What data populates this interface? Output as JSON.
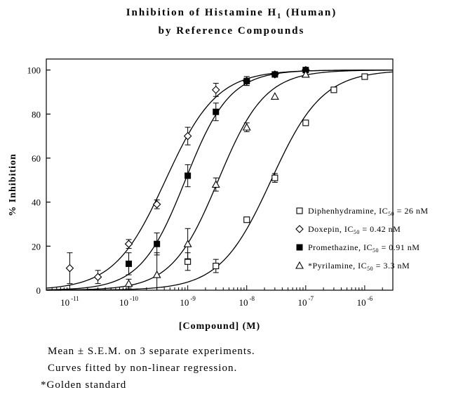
{
  "titles": {
    "line1_pre": "Inhibition of Histamine H",
    "line1_sub": "1",
    "line1_post": " (Human)",
    "line2": "by Reference Compounds"
  },
  "notes": [
    "Mean ± S.E.M. on 3 separate experiments.",
    "Curves fitted by non-linear regression.",
    "*Golden standard"
  ],
  "chart_data": {
    "type": "scatter",
    "xlabel": "[Compound] (M)",
    "ylabel": "% Inhibition",
    "x_scale": "log",
    "xlim": [
      4e-12,
      3e-06
    ],
    "ylim": [
      0,
      105
    ],
    "x_ticks": [
      {
        "value": 1e-11,
        "base": "10",
        "exp": "-11"
      },
      {
        "value": 1e-10,
        "base": "10",
        "exp": "-10"
      },
      {
        "value": 1e-09,
        "base": "10",
        "exp": "-9"
      },
      {
        "value": 1e-08,
        "base": "10",
        "exp": "-8"
      },
      {
        "value": 1e-07,
        "base": "10",
        "exp": "-7"
      },
      {
        "value": 1e-06,
        "base": "10",
        "exp": "-6"
      }
    ],
    "y_ticks": [
      {
        "value": 0,
        "label": "0"
      },
      {
        "value": 20,
        "label": "20"
      },
      {
        "value": 40,
        "label": "40"
      },
      {
        "value": 60,
        "label": "60"
      },
      {
        "value": 80,
        "label": "80"
      },
      {
        "value": 100,
        "label": "100"
      }
    ],
    "grid": false,
    "legend_position": "bottom-right",
    "series": [
      {
        "name": "Diphenhydramine",
        "legend_pre": "Diphenhydramine, IC",
        "legend_sub": "50",
        "legend_post": " = 26 nM",
        "marker": "square-open",
        "ic50": 2.6e-08,
        "hill": 1.0,
        "x": [
          1e-09,
          3e-09,
          1e-08,
          3e-08,
          1e-07,
          3e-07,
          1e-06
        ],
        "y": [
          13,
          11,
          32,
          51,
          76,
          91,
          97
        ],
        "err": [
          4,
          3,
          0,
          2,
          0,
          0,
          0
        ]
      },
      {
        "name": "Doxepin",
        "legend_pre": "Doxepin, IC",
        "legend_sub": "50",
        "legend_post": " = 0.42 nM",
        "marker": "diamond-open",
        "ic50": 4.2e-10,
        "hill": 1.0,
        "x": [
          1e-11,
          3e-11,
          1e-10,
          3e-10,
          1e-09,
          3e-09,
          1e-08,
          3e-08,
          1e-07
        ],
        "y": [
          10,
          6,
          21,
          39,
          70,
          91,
          95,
          98,
          100
        ],
        "err": [
          7,
          3,
          2,
          2,
          4,
          3,
          2,
          0,
          0
        ]
      },
      {
        "name": "Promethazine",
        "legend_pre": "Promethazine, IC",
        "legend_sub": "50",
        "legend_post": " = 0.91 nM",
        "marker": "square-filled",
        "ic50": 9.1e-10,
        "hill": 1.15,
        "x": [
          1e-10,
          3e-10,
          1e-09,
          3e-09,
          1e-08,
          3e-08,
          1e-07
        ],
        "y": [
          12,
          21,
          52,
          81,
          95,
          98,
          100
        ],
        "err": [
          5,
          5,
          5,
          4,
          2,
          0,
          0
        ]
      },
      {
        "name": "*Pyrilamine",
        "legend_pre": "*Pyrilamine, IC",
        "legend_sub": "50",
        "legend_post": " = 3.3 nM",
        "marker": "triangle-open",
        "ic50": 3.3e-09,
        "hill": 1.1,
        "x": [
          1e-10,
          3e-10,
          1e-09,
          3e-09,
          1e-08,
          3e-08,
          1e-07
        ],
        "y": [
          3,
          7,
          21,
          48,
          74,
          88,
          98
        ],
        "err": [
          2,
          10,
          7,
          3,
          2,
          0,
          0
        ]
      }
    ]
  }
}
